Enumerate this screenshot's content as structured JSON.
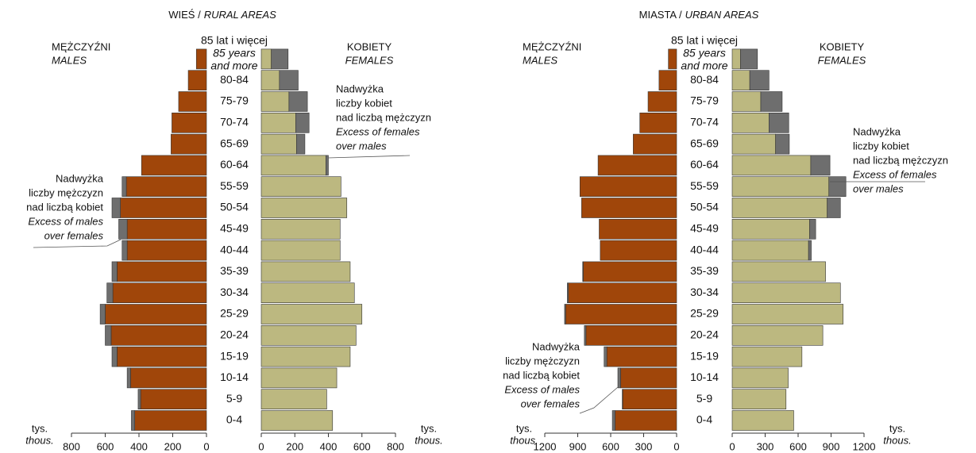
{
  "chart_data": [
    {
      "type": "pyramid",
      "title": "WIEŚ /",
      "title_en": "RURAL AREAS",
      "categories": [
        "0-4",
        "5-9",
        "10-14",
        "15-19",
        "20-24",
        "25-29",
        "30-34",
        "35-39",
        "40-44",
        "45-49",
        "50-54",
        "55-59",
        "60-64",
        "65-69",
        "70-74",
        "75-79",
        "80-84",
        "85 lat i więcej"
      ],
      "top_category_en": [
        "85 years",
        "and more"
      ],
      "series": [
        {
          "name": "MĘŻCZYŹNI",
          "name_en": "MALES",
          "color": "#a0460a",
          "values": [
            445,
            405,
            470,
            560,
            600,
            630,
            590,
            560,
            500,
            520,
            560,
            500,
            385,
            210,
            205,
            165,
            108,
            60
          ]
        },
        {
          "name": "KOBIETY",
          "name_en": "FEMALES",
          "color": "#bcb880",
          "values": [
            425,
            390,
            450,
            530,
            565,
            600,
            555,
            530,
            470,
            470,
            510,
            475,
            400,
            260,
            285,
            275,
            220,
            160
          ]
        }
      ],
      "excess_color": "#6e6e6e",
      "annotations": [
        {
          "text": [
            "Nadwyżka",
            "liczby kobiet",
            "nad liczbą mężczyzn"
          ],
          "text_en": [
            "Excess of females",
            "over males"
          ]
        },
        {
          "text": [
            "Nadwyżka",
            "liczby mężczyzn",
            "nad liczbą kobiet"
          ],
          "text_en": [
            "Excess of males",
            "over females"
          ]
        }
      ],
      "xlim": [
        0,
        800
      ],
      "xticks": [
        0,
        200,
        400,
        600,
        800
      ],
      "unit": "tys.",
      "unit_en": "thous."
    },
    {
      "type": "pyramid",
      "title": "MIASTA /",
      "title_en": "URBAN AREAS",
      "categories": [
        "0-4",
        "5-9",
        "10-14",
        "15-19",
        "20-24",
        "25-29",
        "30-34",
        "35-39",
        "40-44",
        "45-49",
        "50-54",
        "55-59",
        "60-64",
        "65-69",
        "70-74",
        "75-79",
        "80-84",
        "85 lat i więcej"
      ],
      "top_category_en": [
        "85 years",
        "and more"
      ],
      "series": [
        {
          "name": "MĘŻCZYŹNI",
          "name_en": "MALES",
          "color": "#a0460a",
          "values": [
            585,
            495,
            535,
            660,
            840,
            1020,
            995,
            855,
            695,
            705,
            865,
            880,
            715,
            395,
            335,
            260,
            160,
            75
          ]
        },
        {
          "name": "KOBIETY",
          "name_en": "FEMALES",
          "color": "#bcb880",
          "values": [
            560,
            490,
            510,
            635,
            825,
            1010,
            985,
            850,
            720,
            760,
            985,
            1035,
            890,
            520,
            515,
            455,
            335,
            230
          ]
        }
      ],
      "excess_color": "#6e6e6e",
      "annotations": [
        {
          "text": [
            "Nadwyżka",
            "liczby kobiet",
            "nad liczbą mężczyzn"
          ],
          "text_en": [
            "Excess of females",
            "over males"
          ]
        },
        {
          "text": [
            "Nadwyżka",
            "liczby mężczyzn",
            "nad liczbą kobiet"
          ],
          "text_en": [
            "Excess of males",
            "over females"
          ]
        }
      ],
      "xlim": [
        0,
        1200
      ],
      "xticks": [
        0,
        300,
        600,
        900,
        1200
      ],
      "unit": "tys.",
      "unit_en": "thous."
    }
  ]
}
